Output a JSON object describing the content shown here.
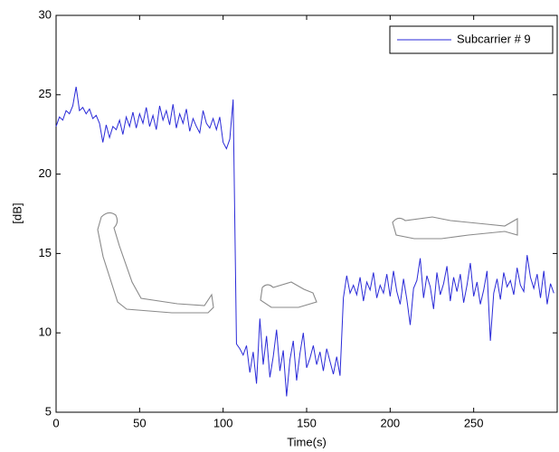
{
  "chart_data": {
    "type": "line",
    "xlabel": "Time(s)",
    "ylabel": "[dB]",
    "xlim": [
      0,
      300
    ],
    "ylim": [
      5,
      30
    ],
    "xticks": [
      0,
      50,
      100,
      150,
      200,
      250
    ],
    "yticks": [
      5,
      10,
      15,
      20,
      25,
      30
    ],
    "legend": "top-right",
    "x": [
      0,
      2,
      4,
      6,
      8,
      10,
      12,
      14,
      16,
      18,
      20,
      22,
      24,
      26,
      28,
      30,
      32,
      34,
      36,
      38,
      40,
      42,
      44,
      46,
      48,
      50,
      52,
      54,
      56,
      58,
      60,
      62,
      64,
      66,
      68,
      70,
      72,
      74,
      76,
      78,
      80,
      82,
      84,
      86,
      88,
      90,
      92,
      94,
      96,
      98,
      100,
      102,
      104,
      106,
      108,
      110,
      112,
      114,
      116,
      118,
      120,
      122,
      124,
      126,
      128,
      130,
      132,
      134,
      136,
      138,
      140,
      142,
      144,
      146,
      148,
      150,
      152,
      154,
      156,
      158,
      160,
      162,
      164,
      166,
      168,
      170,
      172,
      174,
      176,
      178,
      180,
      182,
      184,
      186,
      188,
      190,
      192,
      194,
      196,
      198,
      200,
      202,
      204,
      206,
      208,
      210,
      212,
      214,
      216,
      218,
      220,
      222,
      224,
      226,
      228,
      230,
      232,
      234,
      236,
      238,
      240,
      242,
      244,
      246,
      248,
      250,
      252,
      254,
      256,
      258,
      260,
      262,
      264,
      266,
      268,
      270,
      272,
      274,
      276,
      278,
      280,
      282,
      284,
      286,
      288,
      290,
      292,
      294,
      296,
      298
    ],
    "series": [
      {
        "name": "Subcarrier # 9",
        "color": "#2a2ad8",
        "values": [
          23.0,
          23.6,
          23.4,
          24.0,
          23.8,
          24.3,
          25.5,
          24.0,
          24.2,
          23.8,
          24.1,
          23.5,
          23.7,
          23.2,
          22.0,
          23.1,
          22.3,
          23.0,
          22.8,
          23.4,
          22.5,
          23.6,
          23.0,
          23.9,
          22.9,
          23.8,
          23.2,
          24.2,
          23.0,
          23.7,
          22.8,
          24.3,
          23.4,
          24.0,
          23.1,
          24.4,
          22.9,
          23.8,
          23.2,
          24.1,
          22.7,
          23.5,
          23.0,
          22.6,
          24.0,
          23.2,
          22.9,
          23.5,
          22.8,
          23.6,
          22.0,
          21.6,
          22.2,
          24.7,
          9.3,
          9.0,
          8.6,
          9.2,
          7.5,
          8.8,
          6.8,
          10.9,
          8.0,
          9.8,
          7.2,
          8.5,
          10.2,
          7.6,
          8.9,
          6.0,
          8.3,
          9.5,
          7.0,
          8.7,
          10.0,
          7.8,
          8.4,
          9.2,
          8.0,
          8.8,
          7.6,
          9.0,
          8.2,
          7.4,
          8.5,
          7.3,
          12.2,
          13.6,
          12.5,
          13.0,
          12.4,
          13.5,
          12.0,
          13.2,
          12.7,
          13.8,
          12.2,
          13.0,
          12.5,
          13.7,
          12.3,
          13.9,
          12.6,
          11.8,
          13.4,
          12.1,
          10.5,
          12.8,
          13.3,
          14.7,
          12.2,
          13.6,
          12.9,
          11.5,
          13.8,
          12.4,
          13.1,
          14.2,
          12.0,
          13.5,
          12.6,
          13.7,
          11.9,
          13.0,
          14.4,
          12.3,
          13.2,
          11.8,
          12.7,
          13.9,
          9.5,
          12.5,
          13.4,
          12.1,
          13.8,
          12.9,
          13.3,
          12.4,
          14.1,
          13.0,
          12.6,
          14.9,
          13.5,
          12.8,
          13.7,
          12.2,
          13.9,
          11.8,
          13.1,
          12.5
        ]
      }
    ]
  }
}
